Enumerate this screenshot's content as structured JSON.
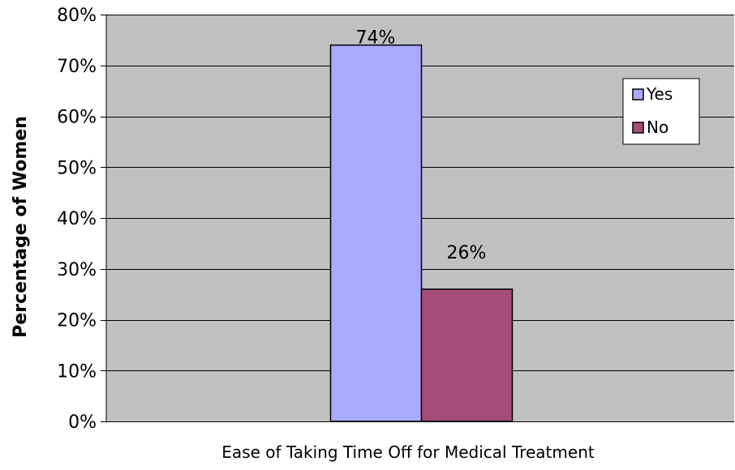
{
  "chart_data": {
    "type": "bar",
    "title": "",
    "xlabel": "Ease of Taking Time Off for Medical Treatment",
    "ylabel": "Percentage of Women",
    "ylim": [
      0,
      80
    ],
    "yticks": [
      0,
      10,
      20,
      30,
      40,
      50,
      60,
      70,
      80
    ],
    "ytick_labels": [
      "0%",
      "10%",
      "20%",
      "30%",
      "40%",
      "50%",
      "60%",
      "70%",
      "80%"
    ],
    "categories": [
      ""
    ],
    "series": [
      {
        "name": "Yes",
        "values": [
          74
        ],
        "label": "74%",
        "color": "#aaaaff"
      },
      {
        "name": "No",
        "values": [
          26
        ],
        "label": "26%",
        "color": "#a64c79"
      }
    ],
    "grid": true,
    "plot_background": "#c0c0c0",
    "legend": {
      "position": "right",
      "entries": [
        "Yes",
        "No"
      ]
    }
  }
}
